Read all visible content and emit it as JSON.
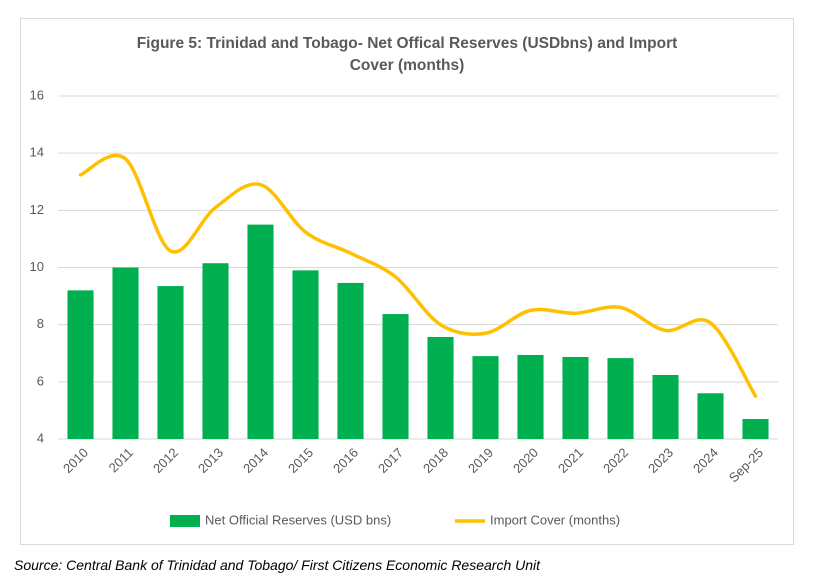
{
  "chart_data": {
    "type": "bar",
    "title": "Figure 5: Trinidad and Tobago- Net Offical Reserves (USDbns) and Import Cover (months)",
    "categories": [
      "2010",
      "2011",
      "2012",
      "2013",
      "2014",
      "2015",
      "2016",
      "2017",
      "2018",
      "2019",
      "2020",
      "2021",
      "2022",
      "2023",
      "2024",
      "Sep-25"
    ],
    "series": [
      {
        "name": "Net Official Reserves (USD bns)",
        "type": "bar",
        "color": "#00b050",
        "values": [
          9.2,
          10.0,
          9.35,
          10.15,
          11.5,
          9.9,
          9.46,
          8.37,
          7.57,
          6.9,
          6.94,
          6.87,
          6.83,
          6.24,
          5.6,
          4.7
        ]
      },
      {
        "name": "Import Cover (months)",
        "type": "line",
        "color": "#ffc000",
        "values": [
          13.24,
          13.8,
          10.58,
          12.1,
          12.9,
          11.24,
          10.5,
          9.67,
          8.0,
          7.7,
          8.5,
          8.4,
          8.6,
          7.8,
          8.06,
          5.5
        ]
      }
    ],
    "ylim": [
      4,
      16
    ],
    "yticks": [
      4,
      6,
      8,
      10,
      12,
      14,
      16
    ],
    "grid": true,
    "legend": "bottom"
  },
  "source": "Source: Central Bank of Trinidad and Tobago/ First Citizens Economic Research Unit"
}
